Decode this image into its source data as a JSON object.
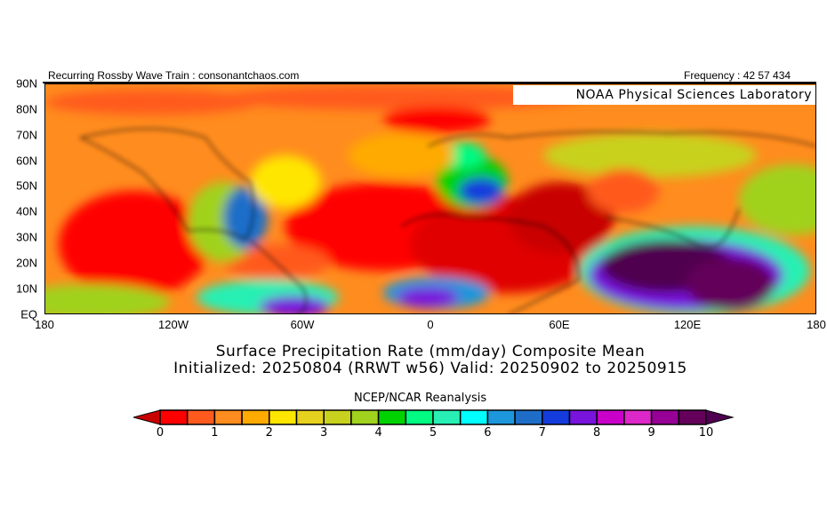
{
  "header": {
    "left": "Recurring Rossby Wave Train : consonantchaos.com",
    "right": "Frequency : 42 57 434",
    "lab": "NOAA Physical Sciences Laboratory"
  },
  "axes": {
    "lat_labels": [
      "90N",
      "80N",
      "70N",
      "60N",
      "50N",
      "40N",
      "30N",
      "20N",
      "10N",
      "EQ"
    ],
    "lon_labels": [
      "180",
      "120W",
      "60W",
      "0",
      "60E",
      "120E",
      "180"
    ]
  },
  "title": {
    "line1": "Surface Precipitation Rate (mm/day) Composite Mean",
    "line2": "Initialized: 20250804 (RRWT w56) Valid: 20250902 to 20250915"
  },
  "colorbar": {
    "source": "NCEP/NCAR Reanalysis",
    "tick_labels": [
      "0",
      "1",
      "2",
      "3",
      "4",
      "5",
      "6",
      "7",
      "8",
      "9",
      "10"
    ],
    "colors": [
      "#ff0000",
      "#ff5a1e",
      "#ff8c1e",
      "#ffaa00",
      "#ffe600",
      "#e6d21e",
      "#c8d21e",
      "#a0d21e",
      "#00d200",
      "#00fa82",
      "#28f0b4",
      "#00ffff",
      "#1e96dc",
      "#1e6ec8",
      "#143cdc",
      "#7814dc",
      "#c800c8",
      "#dc28c8",
      "#960096",
      "#64005a"
    ],
    "under_color": "#c80000",
    "over_color": "#500050"
  }
}
